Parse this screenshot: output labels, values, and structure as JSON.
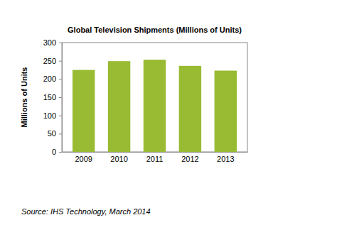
{
  "chart_data": {
    "type": "bar",
    "title": "Global Television Shipments (Millions of Units)",
    "y_label": "Millions of Units",
    "categories": [
      "2009",
      "2010",
      "2011",
      "2012",
      "2013"
    ],
    "values": [
      225,
      249,
      253,
      236,
      223
    ],
    "color": "#99bb33",
    "ylim": [
      0,
      300
    ],
    "yticks": [
      0,
      50,
      100,
      150,
      200,
      250,
      300
    ],
    "grid": false,
    "annotations": [
      "Source: IHS Technology, March 2014"
    ]
  }
}
